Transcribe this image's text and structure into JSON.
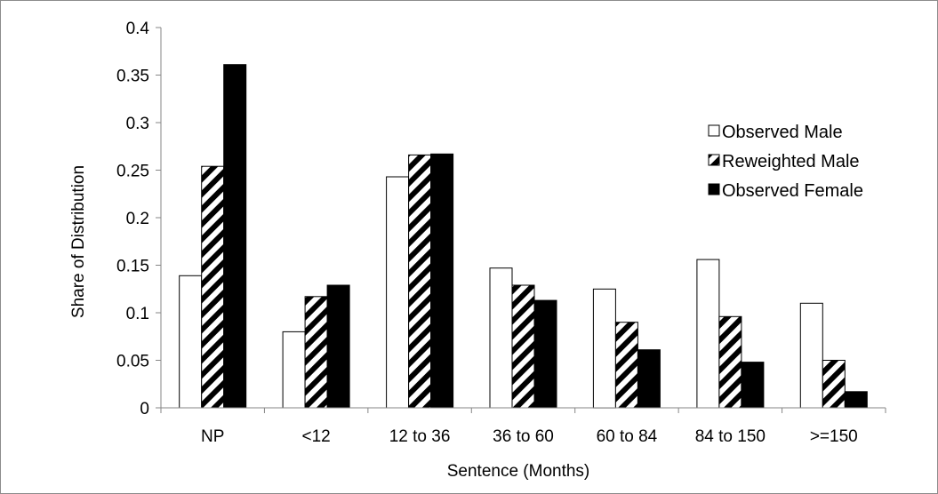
{
  "chart_data": {
    "type": "bar",
    "title": "",
    "xlabel": "Sentence (Months)",
    "ylabel": "Share of Distribution",
    "categories": [
      "NP",
      "<12",
      "12 to 36",
      "36 to 60",
      "60 to 84",
      "84 to 150",
      ">=150"
    ],
    "ylim": [
      0,
      0.4
    ],
    "yticks": [
      "0",
      "0.05",
      "0.1",
      "0.15",
      "0.2",
      "0.25",
      "0.3",
      "0.35",
      "0.4"
    ],
    "grid": false,
    "legend_position": "right",
    "series": [
      {
        "name": "Observed Male",
        "fill": "white",
        "values": [
          0.139,
          0.08,
          0.243,
          0.147,
          0.125,
          0.156,
          0.11
        ]
      },
      {
        "name": "Reweighted Male",
        "fill": "hatch",
        "values": [
          0.254,
          0.117,
          0.266,
          0.129,
          0.09,
          0.096,
          0.05
        ]
      },
      {
        "name": "Observed Female",
        "fill": "black",
        "values": [
          0.361,
          0.129,
          0.267,
          0.113,
          0.061,
          0.048,
          0.017
        ]
      }
    ],
    "colors": {
      "edge": "#000000",
      "solid": "#000000",
      "empty": "#ffffff"
    }
  }
}
